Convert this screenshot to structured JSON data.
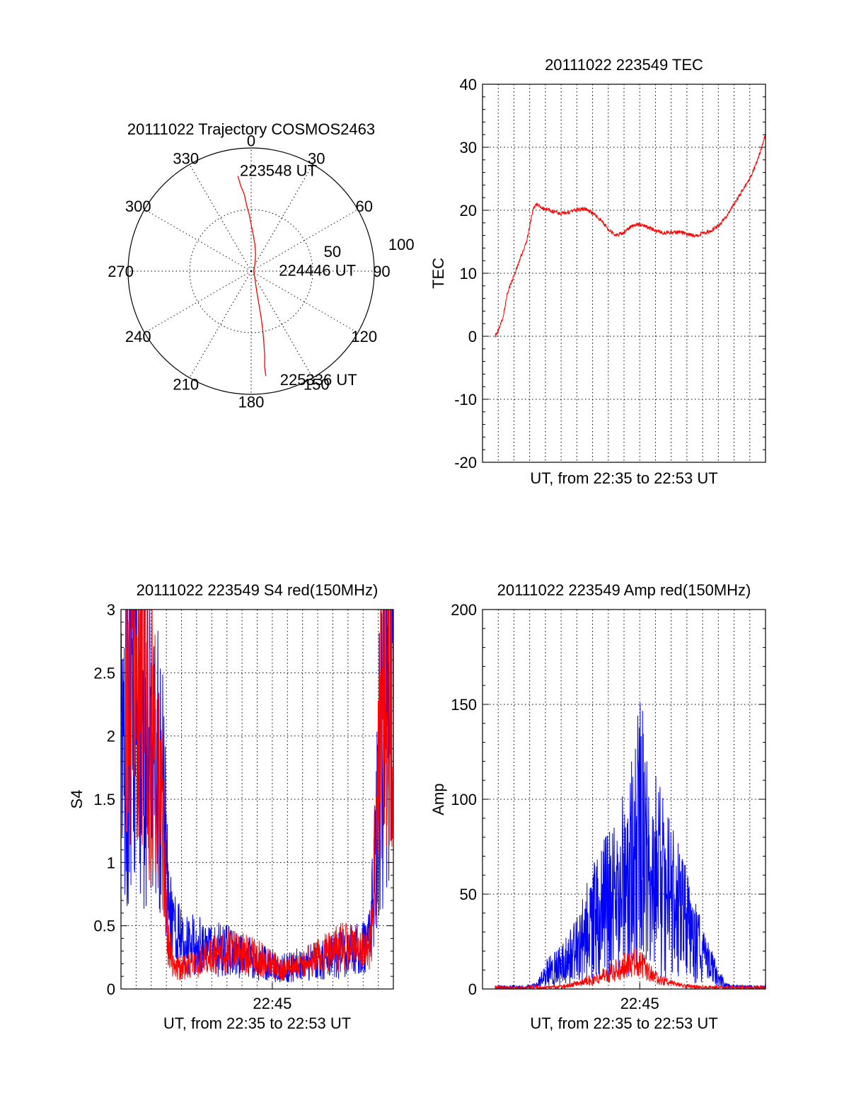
{
  "chart_data": [
    {
      "type": "polar",
      "title": "20111022 Trajectory COSMOS2463",
      "angle_labels": [
        "0",
        "30",
        "60",
        "90",
        "120",
        "150",
        "180",
        "210",
        "240",
        "270",
        "300",
        "330"
      ],
      "radius_labels": [
        "50",
        "100"
      ],
      "rmax": 100,
      "grid": true,
      "series": [
        {
          "color": "#ff0000",
          "points": [
            [
              -8,
              78
            ],
            [
              -7,
              70
            ],
            [
              -5,
              62
            ],
            [
              -4,
              54
            ],
            [
              -2,
              46
            ],
            [
              0,
              38
            ],
            [
              3,
              30
            ],
            [
              8,
              22
            ],
            [
              15,
              14
            ],
            [
              30,
              6
            ],
            [
              90,
              2
            ],
            [
              150,
              6
            ],
            [
              163,
              14
            ],
            [
              166,
              22
            ],
            [
              167,
              30
            ],
            [
              168,
              40
            ],
            [
              169,
              50
            ],
            [
              170,
              60
            ],
            [
              171,
              70
            ],
            [
              172,
              78
            ],
            [
              172,
              83
            ],
            [
              172,
              86
            ]
          ]
        }
      ],
      "annotations": [
        {
          "text": "223548 UT",
          "angle": -4,
          "r": 82
        },
        {
          "text": "224446 UT",
          "angle": 88,
          "r": 26
        },
        {
          "text": "225336 UT",
          "angle": 163,
          "r": 92
        }
      ]
    },
    {
      "type": "line",
      "title": "20111022 223549 TEC",
      "xlabel": "UT, from 22:35 to 22:53 UT",
      "ylabel": "TEC",
      "xlim": [
        0,
        18
      ],
      "ylim": [
        -20,
        40
      ],
      "yticks": [
        -20,
        -10,
        0,
        10,
        20,
        30,
        40
      ],
      "xgrid": [
        1,
        2,
        3,
        4,
        5,
        6,
        7,
        8,
        9,
        10,
        11,
        12,
        13,
        14,
        15,
        16,
        17
      ],
      "xticks_labeled": [],
      "grid": true,
      "series": [
        {
          "color": "#ff0000",
          "noise": 0.5,
          "points": [
            [
              0.8,
              0
            ],
            [
              1.0,
              1
            ],
            [
              1.3,
              3
            ],
            [
              1.6,
              7
            ],
            [
              1.9,
              9
            ],
            [
              2.2,
              11
            ],
            [
              2.5,
              13
            ],
            [
              2.8,
              15
            ],
            [
              3.2,
              20
            ],
            [
              3.4,
              21
            ],
            [
              3.7,
              20.5
            ],
            [
              4.2,
              20
            ],
            [
              4.8,
              19.5
            ],
            [
              5.4,
              19.6
            ],
            [
              6.0,
              20.1
            ],
            [
              6.5,
              20.2
            ],
            [
              7.0,
              19.6
            ],
            [
              7.5,
              18.5
            ],
            [
              8.0,
              17
            ],
            [
              8.5,
              16
            ],
            [
              9.0,
              16.5
            ],
            [
              9.5,
              17.5
            ],
            [
              10.0,
              17.8
            ],
            [
              10.5,
              17.3
            ],
            [
              11.0,
              16.8
            ],
            [
              11.5,
              16.4
            ],
            [
              12.0,
              16.5
            ],
            [
              12.5,
              16.6
            ],
            [
              13.0,
              16.2
            ],
            [
              13.5,
              16.0
            ],
            [
              14.0,
              16.3
            ],
            [
              14.5,
              16.7
            ],
            [
              15.0,
              17.5
            ],
            [
              15.5,
              19
            ],
            [
              16.0,
              21
            ],
            [
              16.5,
              23
            ],
            [
              17.0,
              25
            ],
            [
              17.5,
              28
            ],
            [
              18.0,
              32
            ]
          ]
        }
      ]
    },
    {
      "type": "line",
      "title": "20111022 223549 S4 red(150MHz)",
      "xlabel": "UT, from 22:35 to 22:53 UT",
      "ylabel": "S4",
      "xlim": [
        0,
        18
      ],
      "ylim": [
        0,
        3
      ],
      "yticks": [
        0,
        0.5,
        1,
        1.5,
        2,
        2.5,
        3
      ],
      "ytick_labels": [
        "0",
        "0.5",
        "1",
        "1.5",
        "2",
        "2.5",
        "3"
      ],
      "xgrid": [
        1,
        2,
        3,
        4,
        5,
        6,
        7,
        8,
        9,
        10,
        11,
        12,
        13,
        14,
        15,
        16,
        17
      ],
      "xticks_labeled": [
        {
          "x": 10,
          "label": "22:45"
        }
      ],
      "grid": true,
      "series": [
        {
          "color": "#0000ff",
          "noise": 0.7,
          "points": [
            [
              0,
              1.8
            ],
            [
              0.5,
              2.0
            ],
            [
              1.0,
              2.0
            ],
            [
              1.5,
              2.0
            ],
            [
              2.0,
              1.9
            ],
            [
              2.5,
              1.7
            ],
            [
              2.8,
              1.5
            ],
            [
              3.1,
              0.7
            ],
            [
              3.4,
              0.45
            ],
            [
              4.0,
              0.4
            ],
            [
              5.0,
              0.35
            ],
            [
              6.0,
              0.32
            ],
            [
              7.0,
              0.3
            ],
            [
              8.0,
              0.26
            ],
            [
              9.0,
              0.22
            ],
            [
              10.0,
              0.18
            ],
            [
              10.5,
              0.16
            ],
            [
              11.0,
              0.17
            ],
            [
              12.0,
              0.2
            ],
            [
              13.0,
              0.22
            ],
            [
              14.0,
              0.25
            ],
            [
              15.0,
              0.3
            ],
            [
              16.0,
              0.35
            ],
            [
              16.5,
              0.4
            ],
            [
              17.0,
              1.5
            ],
            [
              17.5,
              2.5
            ],
            [
              18.0,
              2.8
            ]
          ]
        },
        {
          "color": "#ff0000",
          "noise": 0.6,
          "points": [
            [
              0.3,
              2.6
            ],
            [
              0.6,
              2.6
            ],
            [
              1.0,
              2.2
            ],
            [
              1.5,
              2.4
            ],
            [
              2.0,
              2.0
            ],
            [
              2.5,
              1.8
            ],
            [
              2.8,
              1.2
            ],
            [
              3.0,
              0.6
            ],
            [
              3.3,
              0.25
            ],
            [
              3.6,
              0.18
            ],
            [
              4.0,
              0.17
            ],
            [
              5.0,
              0.2
            ],
            [
              6.0,
              0.28
            ],
            [
              7.0,
              0.3
            ],
            [
              8.0,
              0.28
            ],
            [
              9.0,
              0.25
            ],
            [
              10.0,
              0.2
            ],
            [
              10.5,
              0.15
            ],
            [
              11.0,
              0.16
            ],
            [
              12.0,
              0.2
            ],
            [
              13.0,
              0.25
            ],
            [
              14.0,
              0.3
            ],
            [
              15.0,
              0.35
            ],
            [
              16.0,
              0.3
            ],
            [
              16.5,
              0.35
            ],
            [
              16.8,
              1.0
            ],
            [
              17.2,
              2.2
            ],
            [
              17.7,
              2.6
            ],
            [
              18.0,
              2.7
            ]
          ]
        }
      ]
    },
    {
      "type": "line",
      "title": "20111022 223549 Amp red(150MHz)",
      "xlabel": "UT, from 22:35 to 22:53 UT",
      "ylabel": "Amp",
      "xlim": [
        0,
        18
      ],
      "ylim": [
        0,
        200
      ],
      "yticks": [
        0,
        50,
        100,
        150,
        200
      ],
      "xgrid": [
        1,
        2,
        3,
        4,
        5,
        6,
        7,
        8,
        9,
        10,
        11,
        12,
        13,
        14,
        15,
        16,
        17
      ],
      "xticks_labeled": [
        {
          "x": 10,
          "label": "22:45"
        }
      ],
      "grid": true,
      "series": [
        {
          "color": "#0000ff",
          "noise": 0.9,
          "points": [
            [
              0.8,
              0
            ],
            [
              2,
              0
            ],
            [
              3,
              0.5
            ],
            [
              3.5,
              2
            ],
            [
              4.0,
              8
            ],
            [
              5.0,
              12
            ],
            [
              6.0,
              20
            ],
            [
              7.0,
              35
            ],
            [
              8.0,
              45
            ],
            [
              9.0,
              55
            ],
            [
              9.5,
              65
            ],
            [
              10.0,
              80
            ],
            [
              10.5,
              75
            ],
            [
              11.0,
              62
            ],
            [
              12.0,
              48
            ],
            [
              13.0,
              33
            ],
            [
              14.0,
              18
            ],
            [
              15.0,
              6
            ],
            [
              15.5,
              2
            ],
            [
              16.0,
              0.5
            ],
            [
              18.0,
              0
            ]
          ]
        },
        {
          "color": "#ff0000",
          "noise": 0.6,
          "points": [
            [
              0.8,
              0
            ],
            [
              2,
              0
            ],
            [
              4,
              0.2
            ],
            [
              5,
              1
            ],
            [
              6,
              3
            ],
            [
              7,
              5
            ],
            [
              8,
              8
            ],
            [
              9,
              12
            ],
            [
              9.5,
              14
            ],
            [
              10,
              15
            ],
            [
              10.5,
              10
            ],
            [
              11,
              6
            ],
            [
              12,
              3
            ],
            [
              13,
              1.5
            ],
            [
              14,
              0.5
            ],
            [
              15,
              0.2
            ],
            [
              18,
              0
            ]
          ]
        }
      ]
    }
  ]
}
